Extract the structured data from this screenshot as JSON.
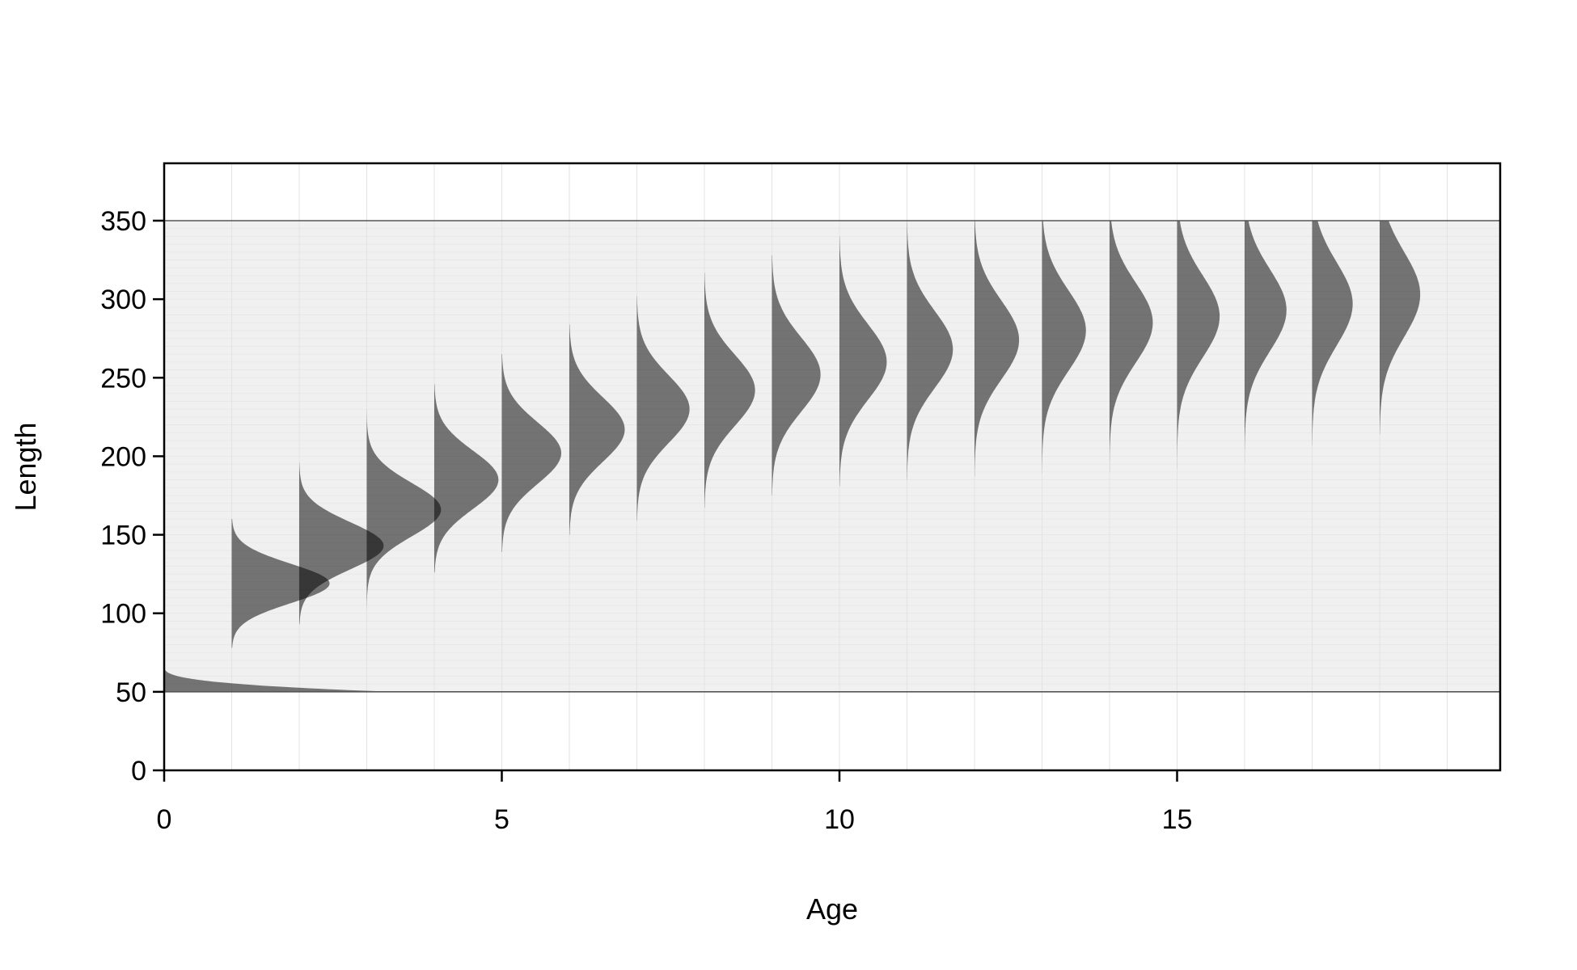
{
  "chart_data": {
    "type": "area",
    "title": "",
    "xlabel": "Age",
    "ylabel": "Length",
    "xlim": [
      0,
      20
    ],
    "ylim": [
      0,
      350
    ],
    "x_ticks": [
      0,
      5,
      10,
      15
    ],
    "y_ticks": [
      0,
      50,
      100,
      150,
      200,
      250,
      300,
      350
    ],
    "length_range": [
      50,
      350
    ],
    "grid": true,
    "fill_color": "#000000",
    "fill_opacity": 0.52,
    "background_band_color": "#f0f0f0",
    "age0_tail": {
      "min_length": 50,
      "max_length": 67,
      "max_age_extent": 3.4
    },
    "series": [
      {
        "name": "1",
        "age": 1,
        "mean": 119,
        "sd": 12.5,
        "peak_width": 1.45,
        "min": 78,
        "max": 160
      },
      {
        "name": "2",
        "age": 2,
        "mean": 143,
        "sd": 15,
        "peak_width": 1.25,
        "min": 93,
        "max": 196
      },
      {
        "name": "3",
        "age": 3,
        "mean": 166,
        "sd": 17,
        "peak_width": 1.1,
        "min": 103,
        "max": 230
      },
      {
        "name": "4",
        "age": 4,
        "mean": 185,
        "sd": 18.5,
        "peak_width": 0.95,
        "min": 126,
        "max": 246
      },
      {
        "name": "5",
        "age": 5,
        "mean": 202,
        "sd": 19.5,
        "peak_width": 0.88,
        "min": 139,
        "max": 265
      },
      {
        "name": "6",
        "age": 6,
        "mean": 217,
        "sd": 20.5,
        "peak_width": 0.82,
        "min": 150,
        "max": 284
      },
      {
        "name": "7",
        "age": 7,
        "mean": 230,
        "sd": 21.5,
        "peak_width": 0.78,
        "min": 159,
        "max": 302
      },
      {
        "name": "8",
        "age": 8,
        "mean": 242,
        "sd": 22.5,
        "peak_width": 0.75,
        "min": 167,
        "max": 317
      },
      {
        "name": "9",
        "age": 9,
        "mean": 252,
        "sd": 23.5,
        "peak_width": 0.72,
        "min": 175,
        "max": 328
      },
      {
        "name": "10",
        "age": 10,
        "mean": 260,
        "sd": 24,
        "peak_width": 0.7,
        "min": 181,
        "max": 340
      },
      {
        "name": "11",
        "age": 11,
        "mean": 268,
        "sd": 24.5,
        "peak_width": 0.68,
        "min": 185,
        "max": 350
      },
      {
        "name": "12",
        "age": 12,
        "mean": 274,
        "sd": 25,
        "peak_width": 0.66,
        "min": 187,
        "max": 350
      },
      {
        "name": "13",
        "age": 13,
        "mean": 280,
        "sd": 25.5,
        "peak_width": 0.65,
        "min": 189,
        "max": 350
      },
      {
        "name": "14",
        "age": 14,
        "mean": 285,
        "sd": 25.5,
        "peak_width": 0.64,
        "min": 190,
        "max": 350
      },
      {
        "name": "15",
        "age": 15,
        "mean": 289,
        "sd": 26,
        "peak_width": 0.63,
        "min": 188,
        "max": 350
      },
      {
        "name": "16",
        "age": 16,
        "mean": 293,
        "sd": 26,
        "peak_width": 0.62,
        "min": 178,
        "max": 350
      },
      {
        "name": "17",
        "age": 17,
        "mean": 297,
        "sd": 26.5,
        "peak_width": 0.6,
        "min": 207,
        "max": 350
      },
      {
        "name": "18",
        "age": 18,
        "mean": 303,
        "sd": 27,
        "peak_width": 0.6,
        "min": 214,
        "max": 350
      }
    ]
  }
}
